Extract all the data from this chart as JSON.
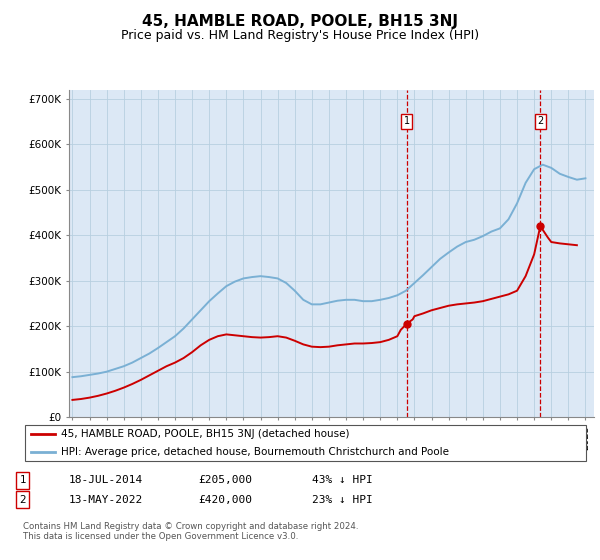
{
  "title": "45, HAMBLE ROAD, POOLE, BH15 3NJ",
  "subtitle": "Price paid vs. HM Land Registry's House Price Index (HPI)",
  "title_fontsize": 11,
  "subtitle_fontsize": 9,
  "ylim": [
    0,
    720000
  ],
  "yticks": [
    0,
    100000,
    200000,
    300000,
    400000,
    500000,
    600000,
    700000
  ],
  "ytick_labels": [
    "£0",
    "£100K",
    "£200K",
    "£300K",
    "£400K",
    "£500K",
    "£600K",
    "£700K"
  ],
  "plot_bg": "#dce8f5",
  "grid_color": "#b8cfe0",
  "hpi_color": "#7ab0d4",
  "price_color": "#cc0000",
  "legend_label1": "45, HAMBLE ROAD, POOLE, BH15 3NJ (detached house)",
  "legend_label2": "HPI: Average price, detached house, Bournemouth Christchurch and Poole",
  "purchase1": {
    "date": "18-JUL-2014",
    "price": 205000,
    "pct": "43%"
  },
  "purchase2": {
    "date": "13-MAY-2022",
    "price": 420000,
    "pct": "23%"
  },
  "footnote": "Contains HM Land Registry data © Crown copyright and database right 2024.\nThis data is licensed under the Open Government Licence v3.0.",
  "hpi_x": [
    1995,
    1995.5,
    1996,
    1996.5,
    1997,
    1997.5,
    1998,
    1998.5,
    1999,
    1999.5,
    2000,
    2000.5,
    2001,
    2001.5,
    2002,
    2002.5,
    2003,
    2003.5,
    2004,
    2004.5,
    2005,
    2005.5,
    2006,
    2006.5,
    2007,
    2007.5,
    2008,
    2008.5,
    2009,
    2009.5,
    2010,
    2010.5,
    2011,
    2011.5,
    2012,
    2012.5,
    2013,
    2013.5,
    2014,
    2014.5,
    2015,
    2015.5,
    2016,
    2016.5,
    2017,
    2017.5,
    2018,
    2018.5,
    2019,
    2019.5,
    2020,
    2020.5,
    2021,
    2021.5,
    2022,
    2022.5,
    2023,
    2023.5,
    2024,
    2024.5,
    2025
  ],
  "hpi_y": [
    88000,
    90000,
    93000,
    96000,
    100000,
    106000,
    112000,
    120000,
    130000,
    140000,
    152000,
    165000,
    178000,
    195000,
    215000,
    235000,
    255000,
    272000,
    288000,
    298000,
    305000,
    308000,
    310000,
    308000,
    305000,
    295000,
    278000,
    258000,
    248000,
    248000,
    252000,
    256000,
    258000,
    258000,
    255000,
    255000,
    258000,
    262000,
    268000,
    278000,
    295000,
    312000,
    330000,
    348000,
    362000,
    375000,
    385000,
    390000,
    398000,
    408000,
    415000,
    435000,
    470000,
    515000,
    545000,
    555000,
    548000,
    535000,
    528000,
    522000,
    525000
  ],
  "price_x": [
    1995,
    1995.5,
    1996,
    1996.5,
    1997,
    1997.5,
    1998,
    1998.5,
    1999,
    1999.5,
    2000,
    2000.5,
    2001,
    2001.5,
    2002,
    2002.5,
    2003,
    2003.5,
    2004,
    2004.5,
    2005,
    2005.5,
    2006,
    2006.5,
    2007,
    2007.5,
    2008,
    2008.5,
    2009,
    2009.5,
    2010,
    2010.5,
    2011,
    2011.5,
    2012,
    2012.5,
    2013,
    2013.5,
    2014,
    2014.2,
    2014.54,
    2014.9,
    2015,
    2015.5,
    2016,
    2016.5,
    2017,
    2017.5,
    2018,
    2018.5,
    2019,
    2019.5,
    2020,
    2020.5,
    2021,
    2021.5,
    2022,
    2022.36,
    2022.8,
    2023,
    2023.5,
    2024,
    2024.5
  ],
  "price_y": [
    38000,
    40000,
    43000,
    47000,
    52000,
    58000,
    65000,
    73000,
    82000,
    92000,
    102000,
    112000,
    120000,
    130000,
    143000,
    158000,
    170000,
    178000,
    182000,
    180000,
    178000,
    176000,
    175000,
    176000,
    178000,
    175000,
    168000,
    160000,
    155000,
    154000,
    155000,
    158000,
    160000,
    162000,
    162000,
    163000,
    165000,
    170000,
    178000,
    192000,
    205000,
    215000,
    222000,
    228000,
    235000,
    240000,
    245000,
    248000,
    250000,
    252000,
    255000,
    260000,
    265000,
    270000,
    278000,
    310000,
    358000,
    420000,
    395000,
    385000,
    382000,
    380000,
    378000
  ],
  "p1_x": 2014.54,
  "p1_y": 205000,
  "p2_x": 2022.36,
  "p2_y": 420000,
  "xlim": [
    1994.8,
    2025.5
  ],
  "xtick_years": [
    1995,
    1996,
    1997,
    1998,
    1999,
    2000,
    2001,
    2002,
    2003,
    2004,
    2005,
    2006,
    2007,
    2008,
    2009,
    2010,
    2011,
    2012,
    2013,
    2014,
    2015,
    2016,
    2017,
    2018,
    2019,
    2020,
    2021,
    2022,
    2023,
    2024,
    2025
  ]
}
